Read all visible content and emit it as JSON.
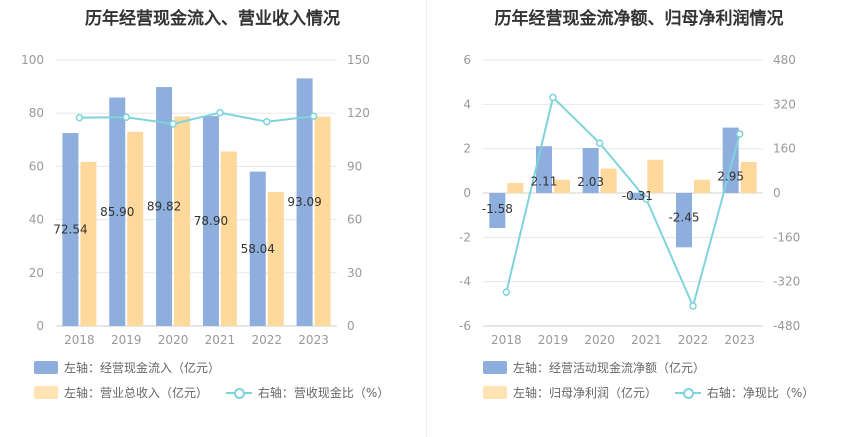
{
  "colors": {
    "bar1": "#8eaedd",
    "bar2": "#ffd99c",
    "line": "#7fd4dc",
    "grid": "#e8e8e8",
    "axis": "#999999",
    "text": "#333333"
  },
  "left_chart": {
    "title": "历年经营现金流入、营业收入情况",
    "legend": {
      "bar1": "左轴：经营现金流入（亿元）",
      "bar2": "左轴：营业总收入（亿元）",
      "line": "右轴：营收现金比（%）"
    }
  },
  "right_chart": {
    "title": "历年经营现金流净额、归母净利润情况",
    "legend": {
      "bar1": "左轴：经营活动现金流净额（亿元）",
      "bar2": "左轴：归母净利润（亿元）",
      "line": "右轴：净现比（%）"
    }
  },
  "chart_data": [
    {
      "type": "bar",
      "title": "历年经营现金流入、营业收入情况",
      "categories": [
        "2018",
        "2019",
        "2020",
        "2021",
        "2022",
        "2023"
      ],
      "y_left": {
        "lim": [
          0,
          100
        ],
        "ticks": [
          0,
          20,
          40,
          60,
          80,
          100
        ]
      },
      "y_right": {
        "lim": [
          0,
          150
        ],
        "ticks": [
          0,
          30,
          60,
          90,
          120,
          150
        ]
      },
      "series": [
        {
          "name": "左轴：经营现金流入（亿元）",
          "kind": "bar",
          "axis": "left",
          "values": [
            72.54,
            85.9,
            89.82,
            78.9,
            58.04,
            93.09
          ],
          "labels": [
            "72.54",
            "85.90",
            "89.82",
            "78.90",
            "58.04",
            "93.09"
          ]
        },
        {
          "name": "左轴：营业总收入（亿元）",
          "kind": "bar",
          "axis": "left",
          "values": [
            61.7,
            73.0,
            78.8,
            65.6,
            50.4,
            78.7
          ]
        },
        {
          "name": "右轴：营收现金比（%）",
          "kind": "line",
          "axis": "right",
          "values": [
            117.5,
            117.7,
            114,
            120.3,
            115.2,
            118.3
          ]
        }
      ],
      "grid": true,
      "legend_position": "bottom"
    },
    {
      "type": "bar",
      "title": "历年经营现金流净额、归母净利润情况",
      "categories": [
        "2018",
        "2019",
        "2020",
        "2021",
        "2022",
        "2023"
      ],
      "y_left": {
        "lim": [
          -6,
          6
        ],
        "ticks": [
          -6,
          -4,
          -2,
          0,
          2,
          4,
          6
        ]
      },
      "y_right": {
        "lim": [
          -480,
          480
        ],
        "ticks": [
          -480,
          -320,
          -160,
          0,
          160,
          320,
          480
        ]
      },
      "series": [
        {
          "name": "左轴：经营活动现金流净额（亿元）",
          "kind": "bar",
          "axis": "left",
          "values": [
            -1.58,
            2.11,
            2.03,
            -0.31,
            -2.45,
            2.95
          ],
          "labels": [
            "-1.58",
            "2.11",
            "2.03",
            "-0.31",
            "-2.45",
            "2.95"
          ]
        },
        {
          "name": "左轴：归母净利润（亿元）",
          "kind": "bar",
          "axis": "left",
          "values": [
            0.45,
            0.6,
            1.1,
            1.5,
            0.6,
            1.4
          ]
        },
        {
          "name": "右轴：净现比（%）",
          "kind": "line",
          "axis": "right",
          "values": [
            -358,
            345,
            180,
            -22,
            -408,
            213
          ]
        }
      ],
      "grid": true,
      "legend_position": "bottom"
    }
  ]
}
